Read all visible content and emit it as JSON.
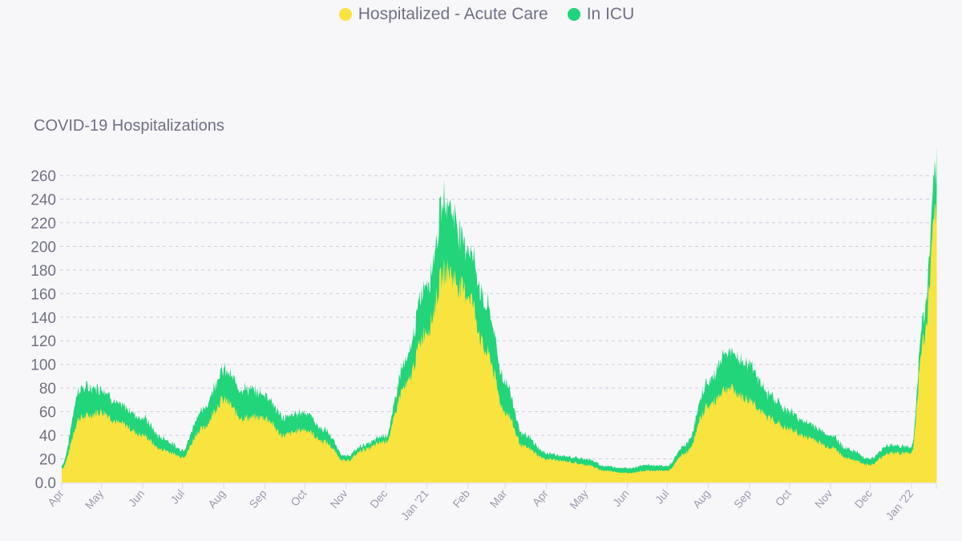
{
  "legend": [
    {
      "label": "Hospitalized - Acute Care",
      "color": "#f9e33f"
    },
    {
      "label": "In ICU",
      "color": "#22d47a"
    }
  ],
  "chart_data": {
    "type": "area",
    "stacked": true,
    "title": "COVID-19 Hospitalizations",
    "xlabel": "",
    "ylabel": "",
    "ylim": [
      0,
      260
    ],
    "yticks": [
      "0.0",
      "20",
      "40",
      "60",
      "80",
      "100",
      "120",
      "140",
      "160",
      "180",
      "200",
      "220",
      "240",
      "260"
    ],
    "xticks": [
      {
        "label": "Apr",
        "date": "2020-04-01"
      },
      {
        "label": "May",
        "date": "2020-05-01"
      },
      {
        "label": "Jun",
        "date": "2020-06-01"
      },
      {
        "label": "Jul",
        "date": "2020-07-01"
      },
      {
        "label": "Aug",
        "date": "2020-08-01"
      },
      {
        "label": "Sep",
        "date": "2020-09-01"
      },
      {
        "label": "Oct",
        "date": "2020-10-01"
      },
      {
        "label": "Nov",
        "date": "2020-11-01"
      },
      {
        "label": "Dec",
        "date": "2020-12-01"
      },
      {
        "label": "Jan '21",
        "date": "2021-01-01"
      },
      {
        "label": "Feb",
        "date": "2021-02-01"
      },
      {
        "label": "Mar",
        "date": "2021-03-01"
      },
      {
        "label": "Apr",
        "date": "2021-04-01"
      },
      {
        "label": "May",
        "date": "2021-05-01"
      },
      {
        "label": "Jun",
        "date": "2021-06-01"
      },
      {
        "label": "Jul",
        "date": "2021-07-01"
      },
      {
        "label": "Aug",
        "date": "2021-08-01"
      },
      {
        "label": "Sep",
        "date": "2021-09-01"
      },
      {
        "label": "Oct",
        "date": "2021-10-01"
      },
      {
        "label": "Nov",
        "date": "2021-11-01"
      },
      {
        "label": "Dec",
        "date": "2021-12-01"
      },
      {
        "label": "Jan '22",
        "date": "2022-01-01"
      }
    ],
    "grid": true,
    "legend_position": "top-center",
    "x": [
      "2020-04-01",
      "2020-04-15",
      "2020-05-01",
      "2020-05-15",
      "2020-06-01",
      "2020-06-15",
      "2020-07-01",
      "2020-07-15",
      "2020-08-01",
      "2020-08-15",
      "2020-09-01",
      "2020-09-15",
      "2020-10-01",
      "2020-10-15",
      "2020-11-01",
      "2020-11-15",
      "2020-12-01",
      "2020-12-15",
      "2021-01-01",
      "2021-01-15",
      "2021-02-01",
      "2021-02-15",
      "2021-03-01",
      "2021-03-15",
      "2021-04-01",
      "2021-04-15",
      "2021-05-01",
      "2021-05-15",
      "2021-06-01",
      "2021-06-15",
      "2021-07-01",
      "2021-07-15",
      "2021-08-01",
      "2021-08-15",
      "2021-09-01",
      "2021-09-15",
      "2021-10-01",
      "2021-10-15",
      "2021-11-01",
      "2021-11-15",
      "2021-12-01",
      "2021-12-15",
      "2022-01-01",
      "2022-01-10",
      "2022-01-20"
    ],
    "series": [
      {
        "name": "Hospitalized - Acute Care",
        "color": "#f9e33f",
        "values": [
          12,
          55,
          60,
          50,
          40,
          28,
          22,
          45,
          70,
          55,
          55,
          40,
          45,
          35,
          18,
          28,
          35,
          80,
          130,
          180,
          160,
          110,
          60,
          30,
          20,
          18,
          15,
          10,
          8,
          10,
          10,
          25,
          65,
          80,
          70,
          55,
          45,
          38,
          30,
          20,
          15,
          25,
          25,
          120,
          230
        ]
      },
      {
        "name": "In ICU",
        "color": "#22d47a",
        "values": [
          3,
          25,
          20,
          15,
          15,
          10,
          6,
          15,
          25,
          25,
          20,
          15,
          15,
          10,
          4,
          4,
          5,
          20,
          40,
          60,
          40,
          40,
          25,
          10,
          5,
          4,
          5,
          4,
          4,
          5,
          4,
          7,
          20,
          30,
          30,
          20,
          15,
          12,
          10,
          8,
          5,
          7,
          5,
          20,
          35
        ]
      }
    ]
  }
}
